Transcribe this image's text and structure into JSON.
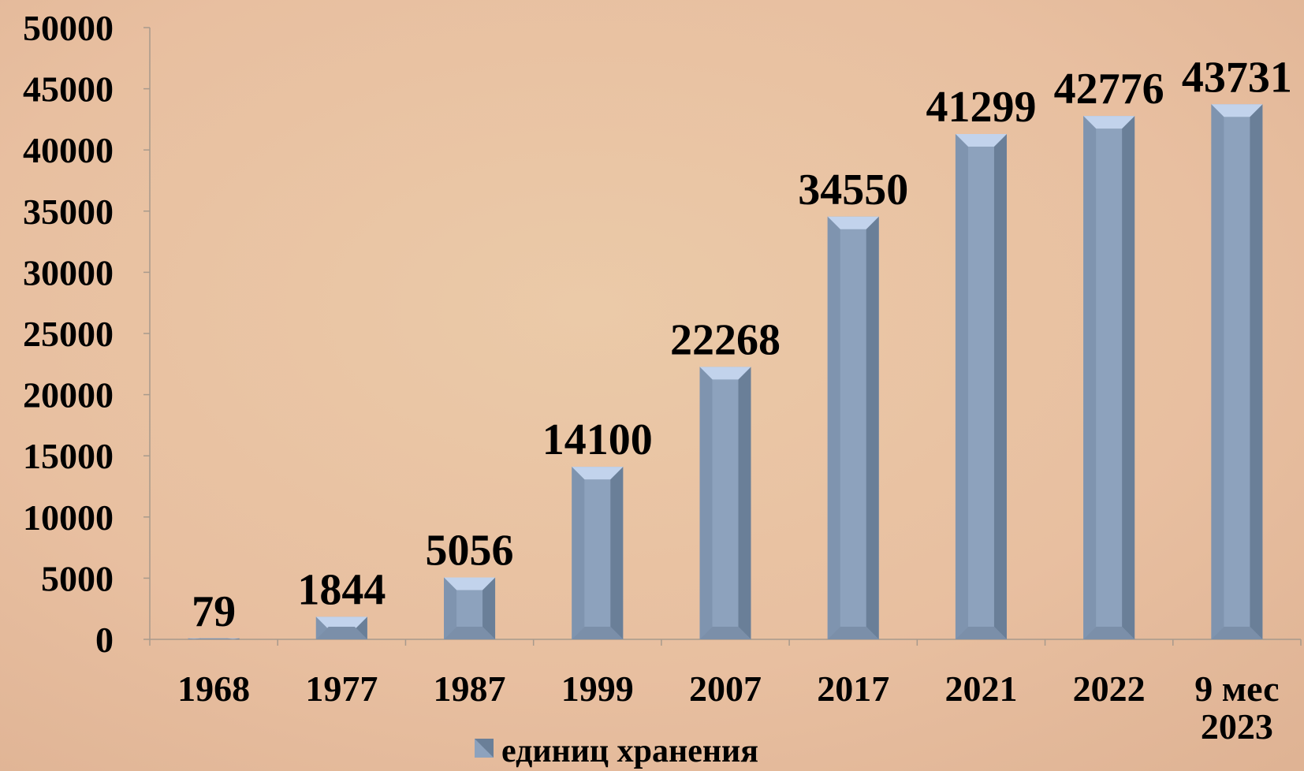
{
  "chart_data": {
    "type": "bar",
    "categories": [
      "1968",
      "1977",
      "1987",
      "1999",
      "2007",
      "2017",
      "2021",
      "2022",
      "9 мес 2023"
    ],
    "series": [
      {
        "name": "единиц хранения",
        "color": "#8da2bd",
        "values": [
          79,
          1844,
          5056,
          14100,
          22268,
          34550,
          41299,
          42776,
          43731
        ]
      }
    ],
    "ylim": [
      0,
      50000
    ],
    "yticks": [
      0,
      5000,
      10000,
      15000,
      20000,
      25000,
      30000,
      35000,
      40000,
      45000,
      50000
    ],
    "legend": "bottom"
  }
}
